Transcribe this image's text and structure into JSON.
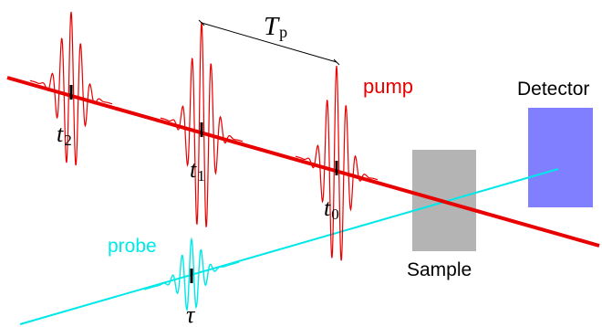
{
  "colors": {
    "pump": "#e80000",
    "probe": "#00e8e8",
    "sample": "#b4b4b4",
    "detector": "#7f7fff",
    "ink": "#000000"
  },
  "labels": {
    "period_main": "T",
    "period_sub": "p",
    "pump": "pump",
    "probe": "probe",
    "sample": "Sample",
    "detector": "Detector",
    "t2_main": "t",
    "t2_sub": "2",
    "t1_main": "t",
    "t1_sub": "1",
    "t0_main": "t",
    "t0_sub": "0",
    "tau": "τ"
  }
}
